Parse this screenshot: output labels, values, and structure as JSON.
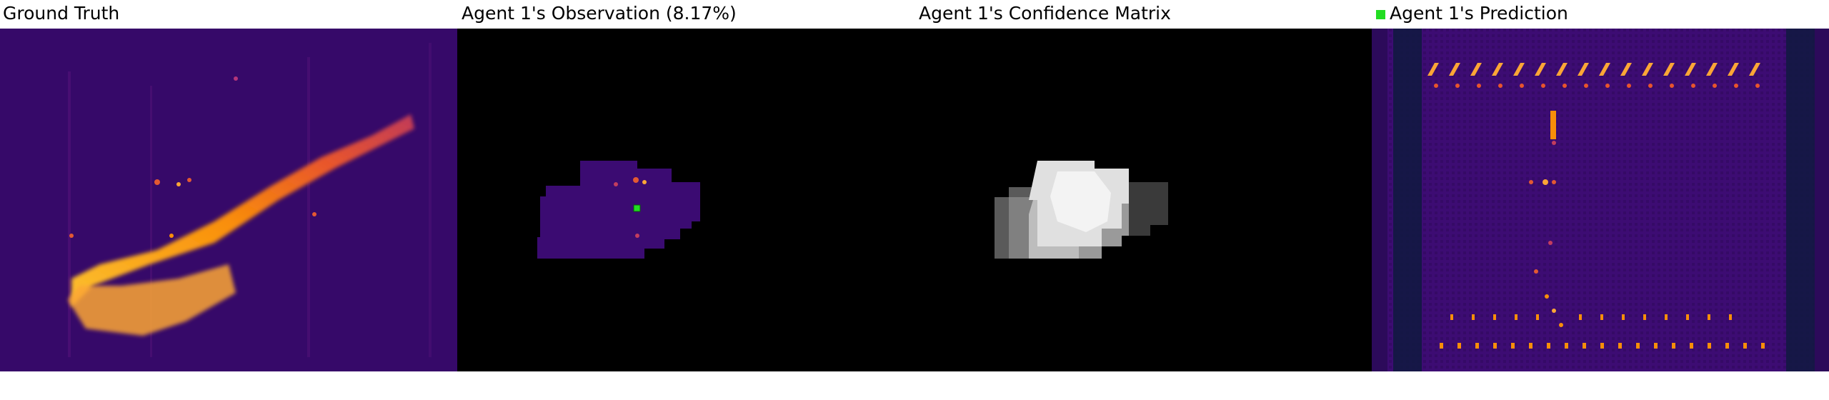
{
  "panels": {
    "ground_truth": {
      "title": "Ground Truth"
    },
    "observation": {
      "title": "Agent 1's Observation (8.17%)"
    },
    "confidence": {
      "title": "Agent 1's Confidence Matrix"
    },
    "prediction": {
      "title": "Agent 1's Prediction"
    }
  },
  "colors": {
    "inferno_background": "#3a0a6e",
    "inferno_bright": "#fbb32a",
    "agent_marker": "#22dd22"
  }
}
